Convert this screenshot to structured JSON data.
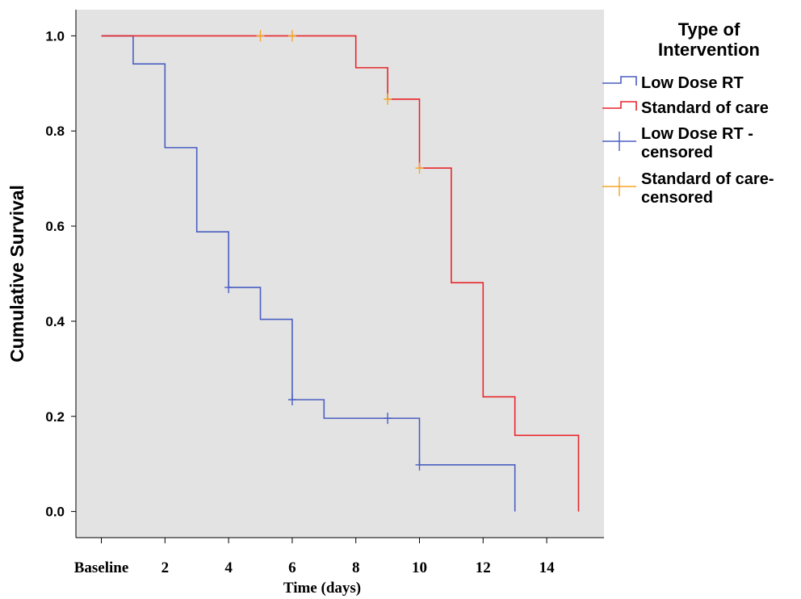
{
  "chart_data": {
    "type": "line",
    "subtype": "kaplan-meier-step",
    "title": "",
    "xlabel": "Time (days)",
    "ylabel": "Cumulative Survival",
    "xlim": [
      -0.8,
      15.8
    ],
    "ylim": [
      -0.055,
      1.055
    ],
    "x_ticks": [
      {
        "value": 0,
        "label": "Baseline"
      },
      {
        "value": 2,
        "label": "2"
      },
      {
        "value": 4,
        "label": "4"
      },
      {
        "value": 6,
        "label": "6"
      },
      {
        "value": 8,
        "label": "8"
      },
      {
        "value": 10,
        "label": "10"
      },
      {
        "value": 12,
        "label": "12"
      },
      {
        "value": 14,
        "label": "14"
      }
    ],
    "y_ticks": [
      {
        "value": 0.0,
        "label": "0.0"
      },
      {
        "value": 0.2,
        "label": "0.2"
      },
      {
        "value": 0.4,
        "label": "0.4"
      },
      {
        "value": 0.6,
        "label": "0.6"
      },
      {
        "value": 0.8,
        "label": "0.8"
      },
      {
        "value": 1.0,
        "label": "1.0"
      }
    ],
    "grid": false,
    "plot_background": "#e3e3e3",
    "series": [
      {
        "name": "Low Dose RT",
        "color": "#4a5fc1",
        "steps": [
          [
            0,
            1.0
          ],
          [
            1,
            0.941
          ],
          [
            2,
            0.765
          ],
          [
            3,
            0.588
          ],
          [
            4,
            0.471
          ],
          [
            5,
            0.404
          ],
          [
            6,
            0.235
          ],
          [
            7,
            0.196
          ],
          [
            10,
            0.098
          ],
          [
            13,
            0.0
          ]
        ],
        "end_x": 13
      },
      {
        "name": "Standard of care",
        "color": "#e8262b",
        "steps": [
          [
            0,
            1.0
          ],
          [
            8,
            0.933
          ],
          [
            9,
            0.867
          ],
          [
            10,
            0.722
          ],
          [
            11,
            0.481
          ],
          [
            12,
            0.241
          ],
          [
            13,
            0.16
          ],
          [
            15,
            0.0
          ]
        ],
        "end_x": 15
      }
    ],
    "censored": [
      {
        "name": "Low Dose RT - censored",
        "color": "#4a5fc1",
        "points": [
          [
            4,
            0.471
          ],
          [
            6,
            0.235
          ],
          [
            9,
            0.196
          ],
          [
            10,
            0.098
          ]
        ]
      },
      {
        "name": "Standard of care- censored",
        "color": "#f5a623",
        "points": [
          [
            5,
            1.0
          ],
          [
            6,
            1.0
          ],
          [
            9,
            0.867
          ],
          [
            10,
            0.722
          ]
        ]
      }
    ],
    "legend": {
      "title_lines": [
        "Type of",
        "Intervention"
      ],
      "placement": "right",
      "entries": [
        {
          "kind": "step",
          "color": "#4a5fc1",
          "lines": [
            "Low Dose RT"
          ]
        },
        {
          "kind": "step",
          "color": "#e8262b",
          "lines": [
            "Standard of care"
          ]
        },
        {
          "kind": "cross",
          "color": "#4a5fc1",
          "lines": [
            "Low Dose RT -",
            "censored"
          ]
        },
        {
          "kind": "cross",
          "color": "#f5a623",
          "lines": [
            "Standard of care-",
            "censored"
          ]
        }
      ]
    }
  }
}
